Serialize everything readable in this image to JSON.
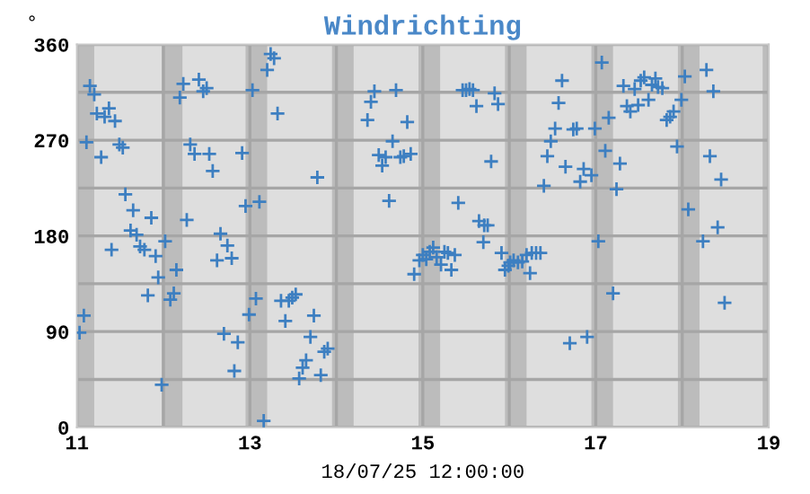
{
  "chart_data": {
    "type": "scatter",
    "title": "Windrichting",
    "ylabel": "°",
    "xlabel": "18/07/25 12:00:00",
    "marker": "cross",
    "grid": true,
    "xlim": [
      11,
      19
    ],
    "xticks": [
      11,
      {
        "value": 12,
        "label": null
      },
      13,
      {
        "value": 14,
        "label": null
      },
      15,
      {
        "value": 16,
        "label": null
      },
      17,
      {
        "value": 18,
        "label": null
      },
      19
    ],
    "ylim": [
      0,
      360
    ],
    "yticks": [
      0,
      {
        "value": 45,
        "label": null
      },
      90,
      {
        "value": 135,
        "label": null
      },
      180,
      {
        "value": 225,
        "label": null
      },
      270,
      {
        "value": 315,
        "label": null
      },
      360
    ],
    "bands": [
      {
        "axis": "x",
        "from": 11,
        "to": 11.2,
        "color": "#bcbcbc"
      },
      {
        "axis": "x",
        "from": 11.98,
        "to": 12.22,
        "color": "#bcbcbc"
      },
      {
        "axis": "x",
        "from": 12.95,
        "to": 13.2,
        "color": "#bcbcbc"
      },
      {
        "axis": "x",
        "from": 13.95,
        "to": 14.2,
        "color": "#bcbcbc"
      },
      {
        "axis": "x",
        "from": 14.95,
        "to": 15.2,
        "color": "#bcbcbc"
      },
      {
        "axis": "x",
        "from": 15.95,
        "to": 16.2,
        "color": "#bcbcbc"
      },
      {
        "axis": "x",
        "from": 16.95,
        "to": 17.2,
        "color": "#bcbcbc"
      },
      {
        "axis": "x",
        "from": 17.95,
        "to": 18.2,
        "color": "#bcbcbc"
      },
      {
        "axis": "x",
        "from": 18.93,
        "to": 19,
        "color": "#bcbcbc"
      }
    ],
    "series": [
      {
        "color": "#3d7fc1",
        "x": [
          11.03,
          11.08,
          11.11,
          11.15,
          11.2,
          11.23,
          11.28,
          11.32,
          11.37,
          11.4,
          11.44,
          11.49,
          11.53,
          11.56,
          11.62,
          11.65,
          11.69,
          11.73,
          11.78,
          11.82,
          11.86,
          11.91,
          11.94,
          11.98,
          12.02,
          12.08,
          12.12,
          12.15,
          12.19,
          12.23,
          12.27,
          12.31,
          12.36,
          12.41,
          12.46,
          12.5,
          12.53,
          12.57,
          12.62,
          12.66,
          12.7,
          12.74,
          12.79,
          12.82,
          12.86,
          12.91,
          12.95,
          12.99,
          13.03,
          13.07,
          13.11,
          13.16,
          13.2,
          13.24,
          13.28,
          13.32,
          13.36,
          13.41,
          13.45,
          13.49,
          13.53,
          13.57,
          13.61,
          13.65,
          13.7,
          13.74,
          13.78,
          13.82,
          13.86,
          13.9,
          14.36,
          14.4,
          14.44,
          14.49,
          14.53,
          14.57,
          14.61,
          14.65,
          14.69,
          14.74,
          14.78,
          14.82,
          14.86,
          14.9,
          14.96,
          15.0,
          15.04,
          15.08,
          15.12,
          15.16,
          15.21,
          15.25,
          15.29,
          15.33,
          15.37,
          15.41,
          15.46,
          15.5,
          15.54,
          15.58,
          15.62,
          15.65,
          15.7,
          15.71,
          15.75,
          15.79,
          15.83,
          15.87,
          15.91,
          15.95,
          15.99,
          16.01,
          16.05,
          16.1,
          16.15,
          16.2,
          16.24,
          16.26,
          16.31,
          16.36,
          16.4,
          16.44,
          16.48,
          16.53,
          16.57,
          16.61,
          16.65,
          16.7,
          16.74,
          16.78,
          16.82,
          16.86,
          16.9,
          16.95,
          16.99,
          17.03,
          17.07,
          17.11,
          17.15,
          17.2,
          17.24,
          17.28,
          17.32,
          17.36,
          17.4,
          17.45,
          17.49,
          17.52,
          17.56,
          17.61,
          17.65,
          17.69,
          17.72,
          17.77,
          17.82,
          17.86,
          17.9,
          17.94,
          17.99,
          18.03,
          18.07,
          18.24,
          18.28,
          18.32,
          18.36,
          18.41,
          18.45,
          18.49
        ],
        "values": [
          89,
          105,
          268,
          321,
          313,
          295,
          254,
          292,
          300,
          167,
          288,
          266,
          263,
          219,
          185,
          204,
          181,
          170,
          167,
          124,
          197,
          161,
          141,
          40,
          175,
          120,
          126,
          148,
          310,
          323,
          195,
          266,
          257,
          327,
          316,
          319,
          257,
          241,
          157,
          182,
          88,
          171,
          159,
          53,
          80,
          258,
          208,
          106,
          317,
          121,
          212,
          6,
          336,
          351,
          347,
          295,
          119,
          100,
          119,
          122,
          125,
          46,
          56,
          63,
          85,
          105,
          235,
          49,
          71,
          74,
          289,
          306,
          316,
          256,
          246,
          254,
          213,
          269,
          317,
          254,
          255,
          287,
          257,
          144,
          157,
          162,
          158,
          165,
          169,
          160,
          153,
          165,
          164,
          148,
          162,
          211,
          317,
          317,
          318,
          317,
          302,
          194,
          174,
          190,
          190,
          250,
          314,
          304,
          164,
          148,
          152,
          155,
          157,
          155,
          156,
          162,
          145,
          164,
          164,
          164,
          227,
          255,
          269,
          281,
          305,
          326,
          245,
          79,
          280,
          281,
          231,
          243,
          85,
          237,
          281,
          175,
          343,
          260,
          291,
          126,
          224,
          248,
          321,
          302,
          297,
          318,
          303,
          326,
          329,
          308,
          322,
          328,
          320,
          319,
          289,
          292,
          297,
          264,
          308,
          330,
          205,
          175,
          336,
          255,
          316,
          188,
          233,
          117
        ]
      }
    ]
  }
}
